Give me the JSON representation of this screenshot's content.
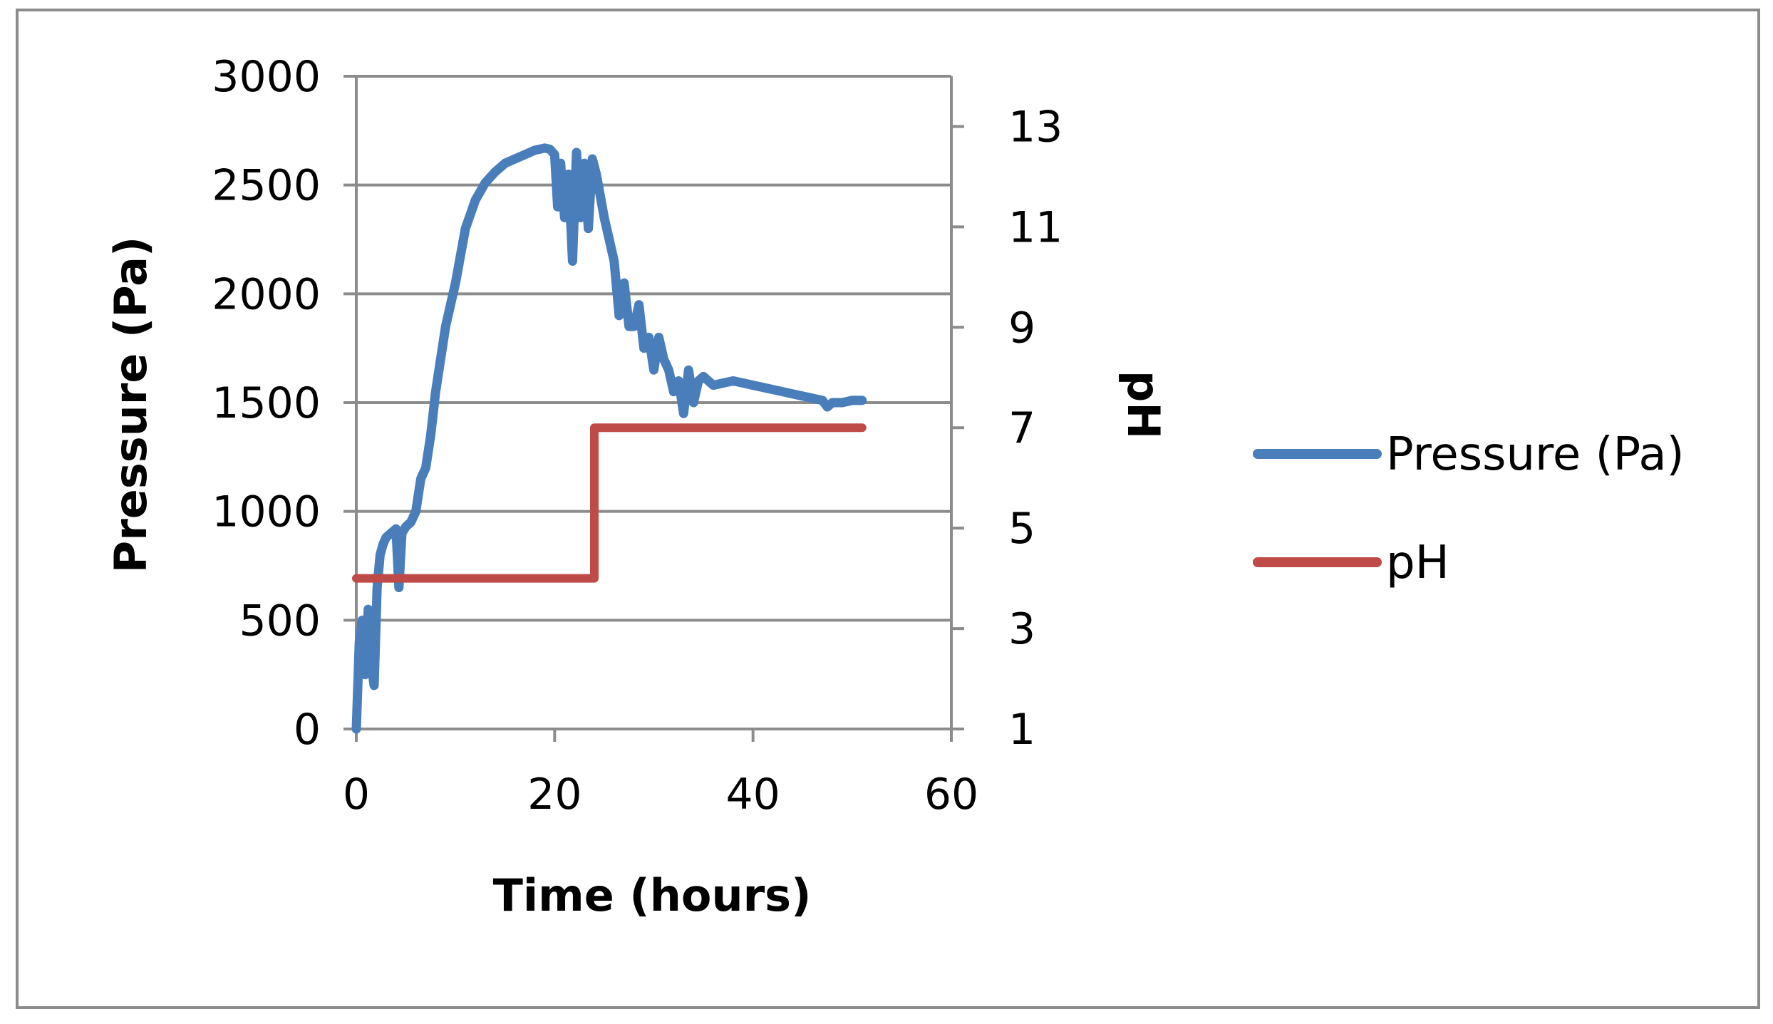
{
  "chart_data": {
    "type": "line",
    "xlabel": "Time (hours)",
    "ylabel": "Pressure (Pa)",
    "y2label": "pH",
    "xlim": [
      0,
      60
    ],
    "ylim": [
      0,
      3000
    ],
    "y2lim": [
      1,
      14
    ],
    "x_ticks": [
      0,
      20,
      40,
      60
    ],
    "y_ticks": [
      0,
      500,
      1000,
      1500,
      2000,
      2500,
      3000
    ],
    "y2_ticks": [
      1,
      3,
      5,
      7,
      9,
      11,
      13
    ],
    "grid": true,
    "legend": "right",
    "series": [
      {
        "name": "Pressure (Pa)",
        "axis": "left",
        "color": "#4a7ebb",
        "x": [
          0,
          0.3,
          0.6,
          0.9,
          1.2,
          1.5,
          1.8,
          2.1,
          2.4,
          2.7,
          3.0,
          3.5,
          4.0,
          4.3,
          4.6,
          5.0,
          5.5,
          6.0,
          6.5,
          7.0,
          7.5,
          8.0,
          8.5,
          9.0,
          10.0,
          11.0,
          12.0,
          13.0,
          14.0,
          15.0,
          16.0,
          17.0,
          18.0,
          19.0,
          19.5,
          20.0,
          20.3,
          20.6,
          21.0,
          21.4,
          21.8,
          22.2,
          22.6,
          23.0,
          23.4,
          23.8,
          24.2,
          24.6,
          25.0,
          25.5,
          26.0,
          26.5,
          27.0,
          27.5,
          28.0,
          28.5,
          29.0,
          29.5,
          30.0,
          30.5,
          31.0,
          31.5,
          32.0,
          32.5,
          33.0,
          33.5,
          34.0,
          34.5,
          35.0,
          36.0,
          37.0,
          38.0,
          39.0,
          40.0,
          41.0,
          42.0,
          43.0,
          44.0,
          45.0,
          46.0,
          47.0,
          47.5,
          48.0,
          49.0,
          50.0,
          51.0
        ],
        "values": [
          0,
          400,
          500,
          250,
          550,
          300,
          200,
          650,
          800,
          850,
          880,
          900,
          920,
          650,
          900,
          930,
          950,
          1000,
          1150,
          1200,
          1350,
          1550,
          1700,
          1850,
          2050,
          2300,
          2430,
          2510,
          2560,
          2600,
          2620,
          2640,
          2660,
          2670,
          2665,
          2640,
          2400,
          2600,
          2350,
          2550,
          2150,
          2650,
          2350,
          2600,
          2300,
          2620,
          2550,
          2450,
          2350,
          2250,
          2150,
          1900,
          2050,
          1850,
          1850,
          1950,
          1750,
          1800,
          1650,
          1800,
          1700,
          1650,
          1550,
          1600,
          1450,
          1650,
          1500,
          1600,
          1620,
          1580,
          1590,
          1600,
          1590,
          1580,
          1570,
          1560,
          1550,
          1540,
          1530,
          1520,
          1510,
          1480,
          1500,
          1500,
          1510,
          1510
        ]
      },
      {
        "name": "pH",
        "axis": "right",
        "color": "#be4b48",
        "x": [
          0,
          24,
          24,
          51
        ],
        "values": [
          4,
          4,
          7,
          7
        ]
      }
    ]
  }
}
